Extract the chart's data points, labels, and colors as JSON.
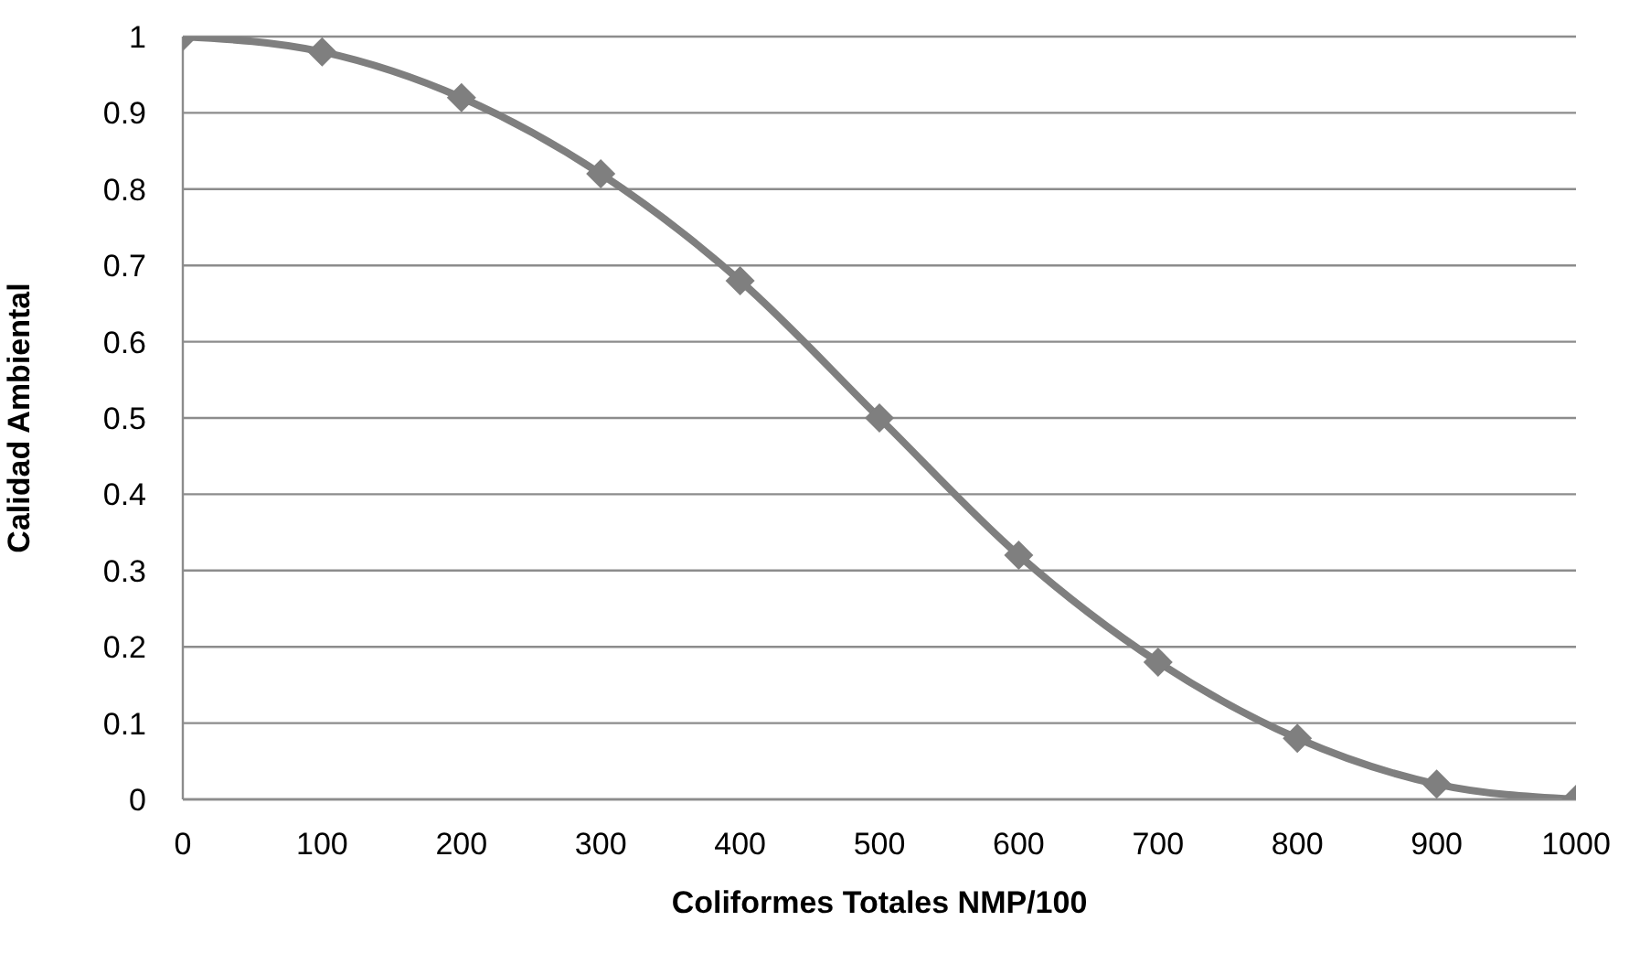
{
  "chart_data": {
    "type": "line",
    "xlabel": "Coliformes Totales NMP/100",
    "ylabel": "Calidad  Ambiental",
    "x": [
      0,
      100,
      200,
      300,
      400,
      500,
      600,
      700,
      800,
      900,
      1000
    ],
    "series": [
      {
        "color": "#7f7f7f",
        "values": [
          1,
          0.98,
          0.92,
          0.82,
          0.68,
          0.5,
          0.32,
          0.18,
          0.08,
          0.02,
          0
        ]
      }
    ],
    "xlim": [
      0,
      1000
    ],
    "xticks": [
      0,
      100,
      200,
      300,
      400,
      500,
      600,
      700,
      800,
      900,
      1000
    ],
    "ylim": [
      0,
      1
    ],
    "yticks": [
      0,
      0.1,
      0.2,
      0.3,
      0.4,
      0.5,
      0.6,
      0.7,
      0.8,
      0.9,
      1
    ],
    "grid": "y",
    "marker": "diamond",
    "line_style": "solid",
    "legend": false
  }
}
